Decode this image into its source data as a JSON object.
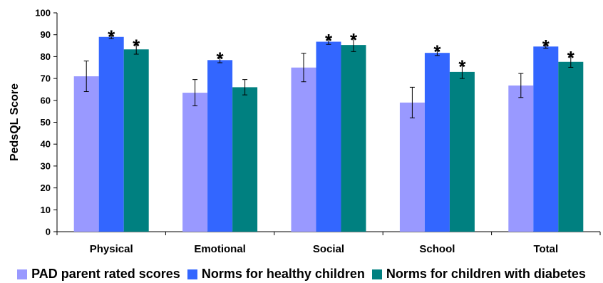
{
  "chart_data": {
    "type": "bar",
    "title": "",
    "xlabel": "",
    "ylabel": "PedsQL Score",
    "ylim": [
      0,
      100
    ],
    "yticks": [
      0,
      10,
      20,
      30,
      40,
      50,
      60,
      70,
      80,
      90,
      100
    ],
    "categories": [
      "Physical",
      "Emotional",
      "Social",
      "School",
      "Total"
    ],
    "series": [
      {
        "name": "PAD parent rated scores",
        "color": "#9999ff",
        "values": [
          71,
          63.5,
          75,
          59,
          66.8
        ],
        "error": [
          7,
          6,
          6.5,
          7,
          5.5
        ],
        "significant": [
          false,
          false,
          false,
          false,
          false
        ]
      },
      {
        "name": "Norms for healthy children",
        "color": "#3366ff",
        "values": [
          89,
          78.4,
          86.8,
          81.7,
          84.6
        ],
        "error": [
          0.8,
          1.2,
          1.2,
          1.2,
          0.8
        ],
        "significant": [
          true,
          true,
          true,
          true,
          true
        ]
      },
      {
        "name": "Norms for children with diabetes",
        "color": "#008080",
        "values": [
          83.3,
          66,
          85.3,
          73,
          77.6
        ],
        "error": [
          2.2,
          3.5,
          3,
          3,
          2.5
        ],
        "significant": [
          true,
          false,
          true,
          true,
          true
        ]
      }
    ],
    "significance_marker": "*",
    "grid": false,
    "legend_position": "bottom"
  }
}
